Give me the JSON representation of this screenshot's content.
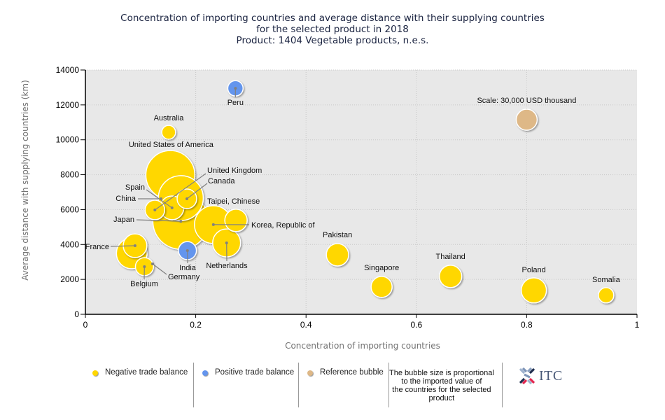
{
  "title": {
    "line1": "Concentration of importing countries and average distance with their supplying countries",
    "line2": "for the selected product in 2018",
    "line3": "Product: 1404 Vegetable products, n.e.s."
  },
  "chart_data": {
    "type": "scatter",
    "subtype": "bubble",
    "title": "Concentration of importing countries and average distance with their supplying countries for the selected product in 2018 — Product: 1404 Vegetable products, n.e.s.",
    "xlabel": "Concentration of importing countries",
    "ylabel": "Average distance with supplying countries (km)",
    "xlim": [
      0,
      1
    ],
    "ylim": [
      0,
      14000
    ],
    "x_ticks": [
      "0",
      "0.2",
      "0.4",
      "0.6",
      "0.8",
      "1"
    ],
    "x_tick_values": [
      0,
      0.2,
      0.4,
      0.6,
      0.8,
      1
    ],
    "y_ticks": [
      "0",
      "2000",
      "4000",
      "6000",
      "8000",
      "10000",
      "12000",
      "14000"
    ],
    "y_tick_values": [
      0,
      2000,
      4000,
      6000,
      8000,
      10000,
      12000,
      14000
    ],
    "grid": true,
    "size_unit": "USD thousand (imported value, estimated from bubble area)",
    "reference": {
      "label": "Scale: 30,000 USD thousand",
      "x": 0.8,
      "y": 11150,
      "size": 30000,
      "category": "reference"
    },
    "points": [
      {
        "name": "Japan",
        "x": 0.173,
        "y": 5330,
        "size": 213000,
        "category": "negative"
      },
      {
        "name": "United States of America",
        "x": 0.154,
        "y": 7980,
        "size": 163000,
        "category": "negative"
      },
      {
        "name": "China",
        "x": 0.173,
        "y": 6660,
        "size": 137000,
        "category": "negative"
      },
      {
        "name": "Korea, Republic of",
        "x": 0.232,
        "y": 5140,
        "size": 97000,
        "category": "negative"
      },
      {
        "name": "Germany",
        "x": 0.084,
        "y": 3490,
        "size": 64000,
        "category": "negative"
      },
      {
        "name": "Netherlands",
        "x": 0.256,
        "y": 4090,
        "size": 53000,
        "category": "negative"
      },
      {
        "name": "Poland",
        "x": 0.813,
        "y": 1370,
        "size": 43000,
        "category": "negative"
      },
      {
        "name": "Spain",
        "x": 0.157,
        "y": 6100,
        "size": 38000,
        "category": "negative"
      },
      {
        "name": "France",
        "x": 0.09,
        "y": 3930,
        "size": 38000,
        "category": "negative"
      },
      {
        "name": "Taipei, Chinese",
        "x": 0.273,
        "y": 5380,
        "size": 34000,
        "category": "negative"
      },
      {
        "name": "Pakistan",
        "x": 0.457,
        "y": 3410,
        "size": 34000,
        "category": "negative"
      },
      {
        "name": "Thailand",
        "x": 0.662,
        "y": 2170,
        "size": 34000,
        "category": "negative"
      },
      {
        "name": "Singapore",
        "x": 0.537,
        "y": 1570,
        "size": 30000,
        "category": "negative"
      },
      {
        "name": "United Kingdom",
        "x": 0.126,
        "y": 5980,
        "size": 26000,
        "category": "negative"
      },
      {
        "name": "Canada",
        "x": 0.184,
        "y": 6620,
        "size": 26000,
        "category": "negative"
      },
      {
        "name": "Belgium",
        "x": 0.107,
        "y": 2730,
        "size": 22000,
        "category": "negative"
      },
      {
        "name": "India",
        "x": 0.185,
        "y": 3650,
        "size": 22000,
        "category": "positive"
      },
      {
        "name": "Peru",
        "x": 0.272,
        "y": 12950,
        "size": 16000,
        "category": "positive"
      },
      {
        "name": "Australia",
        "x": 0.151,
        "y": 10430,
        "size": 13000,
        "category": "negative"
      },
      {
        "name": "Somalia",
        "x": 0.944,
        "y": 1090,
        "size": 16000,
        "category": "negative"
      }
    ],
    "legend": [
      {
        "label": "Negative trade balance",
        "category": "negative"
      },
      {
        "label": "Positive trade balance",
        "category": "positive"
      },
      {
        "label": "Reference bubble",
        "category": "reference"
      }
    ],
    "legend_position": "bottom",
    "colors": {
      "negative": "#FFD700",
      "positive": "#6495ED",
      "reference": "#DEB887",
      "plot_bg": "#E8E8E8"
    }
  },
  "legend_note": [
    "The bubble size is proportional",
    "to the imported value of",
    "the countries for the selected",
    "product"
  ],
  "logo": {
    "text": "ITC"
  }
}
